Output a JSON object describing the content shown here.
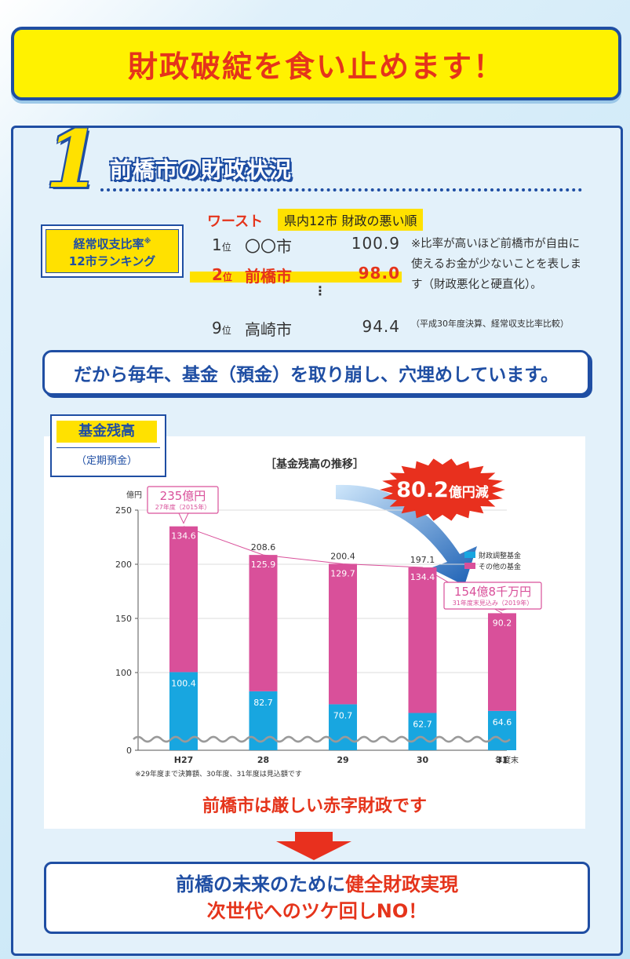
{
  "headline": "財政破綻を食い止めます！",
  "section": {
    "number": "1",
    "title": "前橋市の財政状況"
  },
  "ranking": {
    "label_line1": "経常収支比率",
    "label_mark": "※",
    "label_line2": "12市ランキング",
    "worst": "ワースト",
    "worst_sub": "県内12市 財政の悪い順",
    "rows": [
      {
        "pos": "1",
        "unit": "位",
        "city": "〇〇市",
        "value": "100.9"
      },
      {
        "pos": "2",
        "unit": "位",
        "city": "前橋市",
        "value": "98.0"
      },
      {
        "pos": "9",
        "unit": "位",
        "city": "高崎市",
        "value": "94.4"
      }
    ],
    "dots": "⋮",
    "note": "※比率が高いほど前橋市が自由に使えるお金が少ないことを表します（財政悪化と硬直化）。",
    "note_small": "（平成30年度決算、経常収支比率比較）"
  },
  "banner_mid": "だから毎年、基金（預金）を取り崩し、穴埋めしています。",
  "fund_label": {
    "title": "基金残高",
    "sub": "（定期預金）"
  },
  "chart_data": {
    "type": "bar",
    "title": "［基金残高の推移］",
    "ylabel": "億円",
    "xlabel": "年度末",
    "ylim": [
      0,
      250
    ],
    "yticks": [
      0,
      100,
      150,
      200,
      250
    ],
    "categories": [
      "H27",
      "28",
      "29",
      "30",
      "31"
    ],
    "series": [
      {
        "name": "財政調整基金",
        "color": "#18a6e0",
        "values": [
          100.4,
          82.7,
          70.7,
          62.7,
          64.6
        ]
      },
      {
        "name": "その他の基金",
        "color": "#d9509a",
        "values": [
          134.6,
          125.9,
          129.7,
          134.4,
          90.2
        ]
      }
    ],
    "totals": [
      "",
      "208.6",
      "200.4",
      "197.1",
      ""
    ],
    "callout_first": {
      "main": "235億円",
      "sub": "27年度（2015年）"
    },
    "callout_last": {
      "main": "154億8千万円",
      "sub": "31年度末見込み（2019年）"
    },
    "burst": {
      "value": "80.2",
      "unit": "億円減"
    },
    "footnote": "※29年度まで決算額、30年度、31年度は見込額です"
  },
  "conclusion": "前橋市は厳しい赤字財政です",
  "bottom": {
    "line1_a": "前橋の未来のために",
    "line1_b": "健全財政実現",
    "line2": "次世代へのツケ回しNO！"
  }
}
